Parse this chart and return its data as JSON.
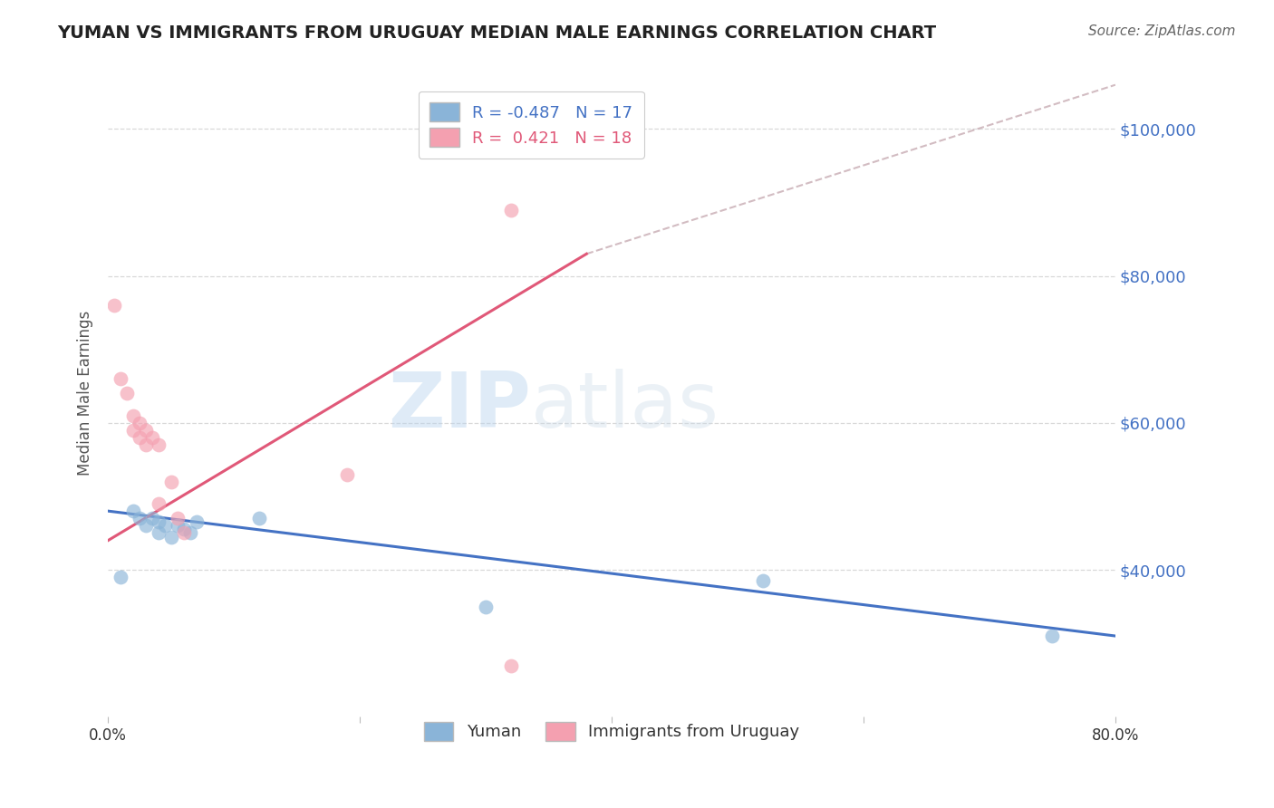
{
  "title": "YUMAN VS IMMIGRANTS FROM URUGUAY MEDIAN MALE EARNINGS CORRELATION CHART",
  "source": "Source: ZipAtlas.com",
  "ylabel": "Median Male Earnings",
  "xlabel": "",
  "xlim": [
    0.0,
    0.8
  ],
  "ylim": [
    20000,
    108000
  ],
  "yticks": [
    40000,
    60000,
    80000,
    100000
  ],
  "ytick_labels": [
    "$40,000",
    "$60,000",
    "$80,000",
    "$100,000"
  ],
  "xticks": [
    0.0,
    0.2,
    0.4,
    0.6,
    0.8
  ],
  "xtick_labels": [
    "0.0%",
    "",
    "",
    "",
    "80.0%"
  ],
  "blue_R": -0.487,
  "blue_N": 17,
  "pink_R": 0.421,
  "pink_N": 18,
  "blue_label": "Yuman",
  "pink_label": "Immigrants from Uruguay",
  "blue_color": "#8ab4d8",
  "pink_color": "#f4a0b0",
  "blue_line_color": "#4472c4",
  "pink_line_color": "#e05878",
  "blue_scatter_x": [
    0.01,
    0.02,
    0.025,
    0.03,
    0.035,
    0.04,
    0.04,
    0.045,
    0.05,
    0.055,
    0.06,
    0.065,
    0.07,
    0.12,
    0.3,
    0.52,
    0.75
  ],
  "blue_scatter_y": [
    39000,
    48000,
    47000,
    46000,
    47000,
    46500,
    45000,
    46000,
    44500,
    46000,
    45500,
    45000,
    46500,
    47000,
    35000,
    38500,
    31000
  ],
  "pink_scatter_x": [
    0.005,
    0.01,
    0.015,
    0.02,
    0.02,
    0.025,
    0.025,
    0.03,
    0.03,
    0.035,
    0.04,
    0.04,
    0.05,
    0.055,
    0.06,
    0.19,
    0.32,
    0.32
  ],
  "pink_scatter_y": [
    76000,
    66000,
    64000,
    61000,
    59000,
    60000,
    58000,
    59000,
    57000,
    58000,
    57000,
    49000,
    52000,
    47000,
    45000,
    53000,
    89000,
    27000
  ],
  "blue_line_x": [
    0.0,
    0.8
  ],
  "blue_line_y": [
    48000,
    31000
  ],
  "pink_line_x": [
    0.0,
    0.38
  ],
  "pink_line_y": [
    44000,
    83000
  ],
  "dashed_line_x": [
    0.38,
    0.8
  ],
  "dashed_line_y": [
    83000,
    106000
  ],
  "ref_line_y": 100000,
  "watermark_zip": "ZIP",
  "watermark_atlas": "atlas",
  "background_color": "#ffffff",
  "title_color": "#222222",
  "source_color": "#666666",
  "axis_label_color": "#555555"
}
